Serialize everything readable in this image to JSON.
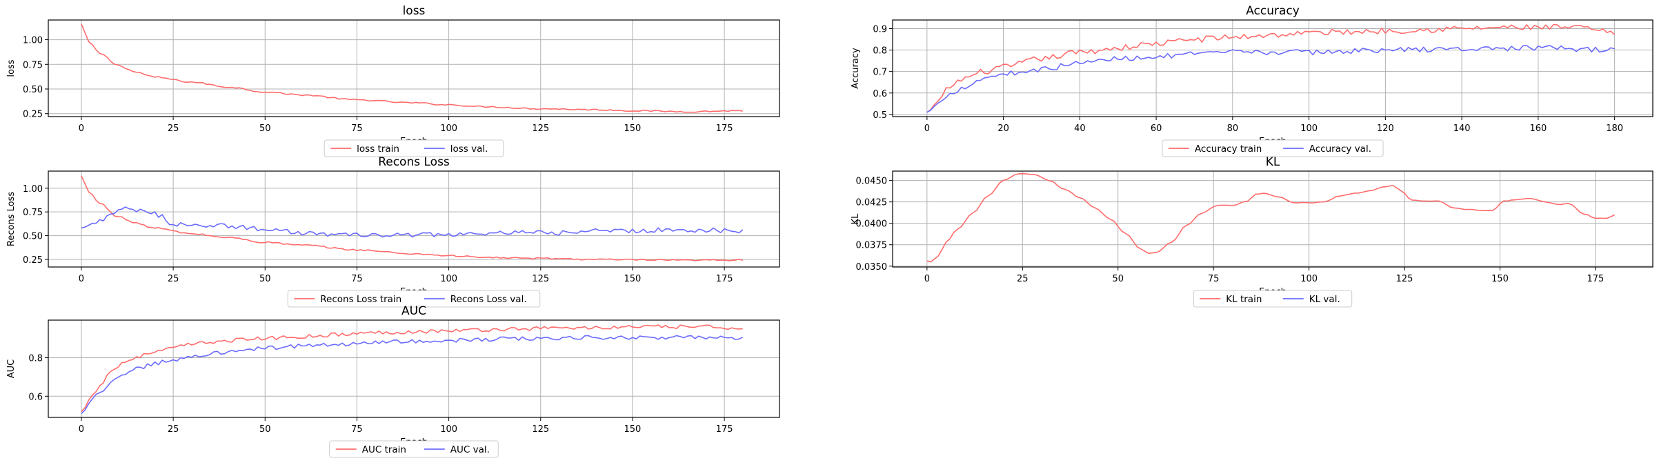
{
  "figure": {
    "background": "#ffffff"
  },
  "chart_data": [
    {
      "type": "line",
      "title": "loss",
      "xlabel": "Epoch",
      "ylabel": "loss",
      "xlim": [
        -9,
        190
      ],
      "ylim": [
        0.22,
        1.2
      ],
      "xticks": [
        0,
        25,
        50,
        75,
        100,
        125,
        150,
        175
      ],
      "yticks": [
        0.25,
        0.5,
        0.75,
        1.0
      ],
      "ytick_labels": [
        "0.25",
        "0.50",
        "0.75",
        "1.00"
      ],
      "grid": true,
      "legend": "bottom-center",
      "series": [
        {
          "name": "loss train",
          "color": "#ff6b6b",
          "n": 181,
          "anchors": [
            [
              0,
              1.16
            ],
            [
              2,
              0.98
            ],
            [
              5,
              0.86
            ],
            [
              10,
              0.74
            ],
            [
              15,
              0.67
            ],
            [
              20,
              0.62
            ],
            [
              30,
              0.57
            ],
            [
              40,
              0.52
            ],
            [
              50,
              0.47
            ],
            [
              60,
              0.44
            ],
            [
              75,
              0.39
            ],
            [
              90,
              0.36
            ],
            [
              100,
              0.34
            ],
            [
              110,
              0.32
            ],
            [
              125,
              0.3
            ],
            [
              140,
              0.29
            ],
            [
              150,
              0.28
            ],
            [
              165,
              0.27
            ],
            [
              180,
              0.28
            ]
          ],
          "noise": 0.007
        },
        {
          "name": "loss val.",
          "color": "#6b6bff",
          "n": 0,
          "anchors": [],
          "noise": 0
        }
      ]
    },
    {
      "type": "line",
      "title": "Accuracy",
      "xlabel": "Epoch",
      "ylabel": "Accuracy",
      "xlim": [
        -9,
        190
      ],
      "ylim": [
        0.49,
        0.94
      ],
      "xticks": [
        0,
        20,
        40,
        60,
        80,
        100,
        120,
        140,
        160,
        180
      ],
      "yticks": [
        0.5,
        0.6,
        0.7,
        0.8,
        0.9
      ],
      "ytick_labels": [
        "0.5",
        "0.6",
        "0.7",
        "0.8",
        "0.9"
      ],
      "grid": true,
      "legend": "bottom-center",
      "series": [
        {
          "name": "Accuracy train",
          "color": "#ff6b6b",
          "n": 181,
          "anchors": [
            [
              0,
              0.51
            ],
            [
              3,
              0.56
            ],
            [
              6,
              0.63
            ],
            [
              10,
              0.67
            ],
            [
              15,
              0.7
            ],
            [
              20,
              0.72
            ],
            [
              30,
              0.76
            ],
            [
              40,
              0.79
            ],
            [
              50,
              0.81
            ],
            [
              60,
              0.83
            ],
            [
              70,
              0.85
            ],
            [
              80,
              0.86
            ],
            [
              90,
              0.87
            ],
            [
              100,
              0.88
            ],
            [
              110,
              0.885
            ],
            [
              120,
              0.89
            ],
            [
              130,
              0.895
            ],
            [
              140,
              0.9
            ],
            [
              150,
              0.905
            ],
            [
              160,
              0.905
            ],
            [
              170,
              0.905
            ],
            [
              180,
              0.88
            ]
          ],
          "noise": 0.014
        },
        {
          "name": "Accuracy val.",
          "color": "#6b6bff",
          "n": 181,
          "anchors": [
            [
              0,
              0.51
            ],
            [
              3,
              0.55
            ],
            [
              6,
              0.6
            ],
            [
              10,
              0.63
            ],
            [
              15,
              0.67
            ],
            [
              20,
              0.69
            ],
            [
              30,
              0.71
            ],
            [
              40,
              0.74
            ],
            [
              50,
              0.76
            ],
            [
              60,
              0.77
            ],
            [
              70,
              0.78
            ],
            [
              80,
              0.79
            ],
            [
              100,
              0.79
            ],
            [
              120,
              0.8
            ],
            [
              140,
              0.805
            ],
            [
              160,
              0.81
            ],
            [
              180,
              0.8
            ]
          ],
          "noise": 0.012
        }
      ]
    },
    {
      "type": "line",
      "title": "Recons Loss",
      "xlabel": "Epoch",
      "ylabel": "Recons Loss",
      "xlim": [
        -9,
        190
      ],
      "ylim": [
        0.17,
        1.18
      ],
      "xticks": [
        0,
        25,
        50,
        75,
        100,
        125,
        150,
        175
      ],
      "yticks": [
        0.25,
        0.5,
        0.75,
        1.0
      ],
      "ytick_labels": [
        "0.25",
        "0.50",
        "0.75",
        "1.00"
      ],
      "grid": true,
      "legend": "bottom-center",
      "series": [
        {
          "name": "Recons Loss train",
          "color": "#ff6b6b",
          "n": 181,
          "anchors": [
            [
              0,
              1.13
            ],
            [
              2,
              0.96
            ],
            [
              5,
              0.84
            ],
            [
              10,
              0.7
            ],
            [
              15,
              0.63
            ],
            [
              20,
              0.58
            ],
            [
              30,
              0.52
            ],
            [
              40,
              0.48
            ],
            [
              50,
              0.43
            ],
            [
              60,
              0.4
            ],
            [
              75,
              0.35
            ],
            [
              90,
              0.31
            ],
            [
              100,
              0.29
            ],
            [
              110,
              0.27
            ],
            [
              125,
              0.26
            ],
            [
              140,
              0.25
            ],
            [
              150,
              0.245
            ],
            [
              165,
              0.24
            ],
            [
              180,
              0.245
            ]
          ],
          "noise": 0.008
        },
        {
          "name": "Recons Loss val.",
          "color": "#6b6bff",
          "n": 181,
          "anchors": [
            [
              0,
              0.58
            ],
            [
              3,
              0.62
            ],
            [
              6,
              0.68
            ],
            [
              9,
              0.74
            ],
            [
              12,
              0.78
            ],
            [
              16,
              0.76
            ],
            [
              19,
              0.74
            ],
            [
              22,
              0.7
            ],
            [
              25,
              0.62
            ],
            [
              30,
              0.62
            ],
            [
              40,
              0.6
            ],
            [
              50,
              0.57
            ],
            [
              60,
              0.53
            ],
            [
              70,
              0.51
            ],
            [
              80,
              0.5
            ],
            [
              90,
              0.51
            ],
            [
              100,
              0.51
            ],
            [
              110,
              0.52
            ],
            [
              120,
              0.53
            ],
            [
              130,
              0.53
            ],
            [
              140,
              0.55
            ],
            [
              150,
              0.55
            ],
            [
              160,
              0.56
            ],
            [
              170,
              0.56
            ],
            [
              180,
              0.55
            ]
          ],
          "noise": 0.025
        }
      ]
    },
    {
      "type": "line",
      "title": "KL",
      "xlabel": "Epoch",
      "ylabel": "KL",
      "xlim": [
        -9,
        190
      ],
      "ylim": [
        0.0349,
        0.0461
      ],
      "xticks": [
        0,
        25,
        50,
        75,
        100,
        125,
        150,
        175
      ],
      "yticks": [
        0.035,
        0.0375,
        0.04,
        0.0425,
        0.045
      ],
      "ytick_labels": [
        "0.0350",
        "0.0375",
        "0.0400",
        "0.0425",
        "0.0450"
      ],
      "grid": true,
      "legend": "bottom-center",
      "series": [
        {
          "name": "KL train",
          "color": "#ff6b6b",
          "n": 181,
          "anchors": [
            [
              0,
              0.0356
            ],
            [
              1,
              0.0355
            ],
            [
              3,
              0.0362
            ],
            [
              5,
              0.0378
            ],
            [
              8,
              0.0393
            ],
            [
              12,
              0.0412
            ],
            [
              16,
              0.0432
            ],
            [
              20,
              0.045
            ],
            [
              24,
              0.0458
            ],
            [
              28,
              0.0457
            ],
            [
              32,
              0.045
            ],
            [
              36,
              0.044
            ],
            [
              40,
              0.043
            ],
            [
              44,
              0.0418
            ],
            [
              48,
              0.0405
            ],
            [
              52,
              0.0388
            ],
            [
              56,
              0.037
            ],
            [
              58,
              0.0365
            ],
            [
              60,
              0.0366
            ],
            [
              64,
              0.0378
            ],
            [
              68,
              0.0398
            ],
            [
              72,
              0.0412
            ],
            [
              76,
              0.0421
            ],
            [
              80,
              0.0421
            ],
            [
              84,
              0.0426
            ],
            [
              86,
              0.0434
            ],
            [
              88,
              0.0435
            ],
            [
              92,
              0.0431
            ],
            [
              96,
              0.0424
            ],
            [
              100,
              0.0424
            ],
            [
              104,
              0.0425
            ],
            [
              108,
              0.0432
            ],
            [
              112,
              0.0435
            ],
            [
              116,
              0.0438
            ],
            [
              120,
              0.0443
            ],
            [
              122,
              0.0444
            ],
            [
              124,
              0.0438
            ],
            [
              127,
              0.0427
            ],
            [
              130,
              0.0426
            ],
            [
              134,
              0.0426
            ],
            [
              138,
              0.0418
            ],
            [
              142,
              0.0416
            ],
            [
              146,
              0.0415
            ],
            [
              148,
              0.0415
            ],
            [
              151,
              0.0426
            ],
            [
              155,
              0.0428
            ],
            [
              158,
              0.0429
            ],
            [
              162,
              0.0425
            ],
            [
              165,
              0.0422
            ],
            [
              168,
              0.0423
            ],
            [
              172,
              0.0411
            ],
            [
              175,
              0.0406
            ],
            [
              178,
              0.0406
            ],
            [
              180,
              0.041
            ]
          ],
          "noise": 3e-05
        },
        {
          "name": "KL val.",
          "color": "#6b6bff",
          "n": 0,
          "anchors": [],
          "noise": 0
        }
      ]
    },
    {
      "type": "line",
      "title": "AUC",
      "xlabel": "Epoch",
      "ylabel": "AUC",
      "xlim": [
        -9,
        190
      ],
      "ylim": [
        0.49,
        0.995
      ],
      "xticks": [
        0,
        25,
        50,
        75,
        100,
        125,
        150,
        175
      ],
      "yticks": [
        0.6,
        0.8
      ],
      "ytick_labels": [
        "0.6",
        "0.8"
      ],
      "grid": true,
      "legend": "bottom-center",
      "series": [
        {
          "name": "AUC train",
          "color": "#ff6b6b",
          "n": 181,
          "anchors": [
            [
              0,
              0.52
            ],
            [
              3,
              0.6
            ],
            [
              5,
              0.66
            ],
            [
              8,
              0.73
            ],
            [
              12,
              0.78
            ],
            [
              16,
              0.81
            ],
            [
              20,
              0.83
            ],
            [
              25,
              0.85
            ],
            [
              30,
              0.87
            ],
            [
              40,
              0.89
            ],
            [
              50,
              0.9
            ],
            [
              60,
              0.91
            ],
            [
              70,
              0.92
            ],
            [
              80,
              0.93
            ],
            [
              90,
              0.935
            ],
            [
              100,
              0.94
            ],
            [
              110,
              0.945
            ],
            [
              120,
              0.95
            ],
            [
              130,
              0.955
            ],
            [
              140,
              0.955
            ],
            [
              150,
              0.96
            ],
            [
              160,
              0.96
            ],
            [
              170,
              0.96
            ],
            [
              180,
              0.955
            ]
          ],
          "noise": 0.01
        },
        {
          "name": "AUC val.",
          "color": "#6b6bff",
          "n": 181,
          "anchors": [
            [
              0,
              0.51
            ],
            [
              3,
              0.58
            ],
            [
              5,
              0.62
            ],
            [
              8,
              0.67
            ],
            [
              12,
              0.72
            ],
            [
              16,
              0.75
            ],
            [
              20,
              0.77
            ],
            [
              25,
              0.79
            ],
            [
              30,
              0.81
            ],
            [
              40,
              0.83
            ],
            [
              50,
              0.85
            ],
            [
              60,
              0.86
            ],
            [
              70,
              0.87
            ],
            [
              80,
              0.88
            ],
            [
              90,
              0.885
            ],
            [
              100,
              0.89
            ],
            [
              110,
              0.895
            ],
            [
              120,
              0.9
            ],
            [
              130,
              0.9
            ],
            [
              140,
              0.905
            ],
            [
              150,
              0.905
            ],
            [
              160,
              0.905
            ],
            [
              170,
              0.905
            ],
            [
              180,
              0.9
            ]
          ],
          "noise": 0.01
        }
      ]
    }
  ]
}
